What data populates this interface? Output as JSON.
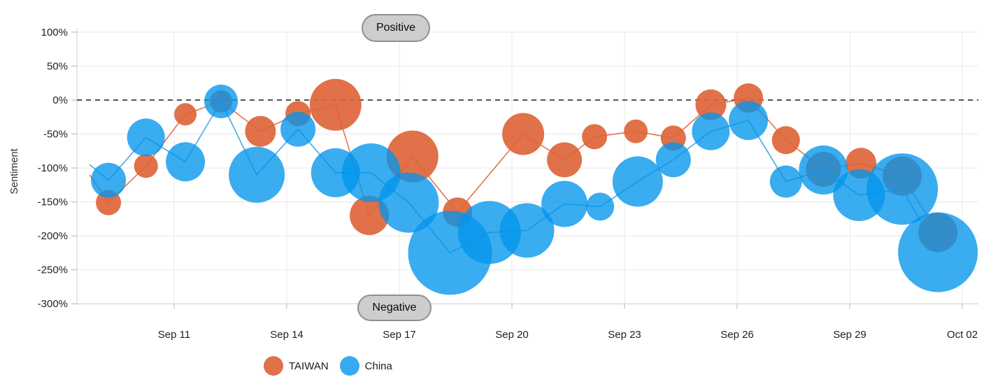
{
  "chart_data": {
    "type": "bubble",
    "title": "",
    "ylabel": "Sentiment",
    "ylim": [
      -300,
      100
    ],
    "grid": true,
    "zero_line": {
      "value": 0,
      "style": "dashed",
      "color": "#1a1a1a"
    },
    "annotations": {
      "top": "Positive",
      "bottom": "Negative"
    },
    "y_ticks": [
      {
        "label": "100%",
        "value": 100
      },
      {
        "label": "50%",
        "value": 50
      },
      {
        "label": "0%",
        "value": 0
      },
      {
        "label": "-50%",
        "value": -50
      },
      {
        "label": "-100%",
        "value": -100
      },
      {
        "label": "-150%",
        "value": -150
      },
      {
        "label": "-200%",
        "value": -200
      },
      {
        "label": "-250%",
        "value": -250
      },
      {
        "label": "-300%",
        "value": -300
      }
    ],
    "x_ticks": [
      {
        "label": "Sep 11",
        "day": 11
      },
      {
        "label": "Sep 14",
        "day": 14
      },
      {
        "label": "Sep 17",
        "day": 17
      },
      {
        "label": "Sep 20",
        "day": 20
      },
      {
        "label": "Sep 23",
        "day": 23
      },
      {
        "label": "Sep 26",
        "day": 26
      },
      {
        "label": "Sep 29",
        "day": 29
      },
      {
        "label": "Oct 02",
        "day": 32
      }
    ],
    "series": [
      {
        "name": "TAIWAN",
        "swatch_color": "#DF7049",
        "line_color": "#DF6E45",
        "bubble_fill": "rgba(221,101,58,0.92)",
        "points": [
          {
            "day": 8.75,
            "sentiment": -110,
            "r": 0
          },
          {
            "day": 9.25,
            "sentiment": -151,
            "r": 18
          },
          {
            "day": 10.25,
            "sentiment": -97,
            "r": 17
          },
          {
            "day": 11.3,
            "sentiment": -21,
            "r": 16
          },
          {
            "day": 12.25,
            "sentiment": -2,
            "r": 16
          },
          {
            "day": 13.3,
            "sentiment": -46,
            "r": 22
          },
          {
            "day": 14.3,
            "sentiment": -20,
            "r": 18
          },
          {
            "day": 15.3,
            "sentiment": -7,
            "r": 37
          },
          {
            "day": 16.2,
            "sentiment": -170,
            "r": 28
          },
          {
            "day": 17.35,
            "sentiment": -83,
            "r": 37
          },
          {
            "day": 18.55,
            "sentiment": -165,
            "r": 21
          },
          {
            "day": 20.3,
            "sentiment": -50,
            "r": 30
          },
          {
            "day": 21.4,
            "sentiment": -88,
            "r": 25
          },
          {
            "day": 22.2,
            "sentiment": -54,
            "r": 18
          },
          {
            "day": 23.3,
            "sentiment": -46,
            "r": 17
          },
          {
            "day": 24.3,
            "sentiment": -56,
            "r": 18
          },
          {
            "day": 25.3,
            "sentiment": -7,
            "r": 22
          },
          {
            "day": 26.3,
            "sentiment": 3,
            "r": 21
          },
          {
            "day": 27.3,
            "sentiment": -59,
            "r": 20
          },
          {
            "day": 28.3,
            "sentiment": -102,
            "r": 25
          },
          {
            "day": 29.3,
            "sentiment": -93,
            "r": 22
          },
          {
            "day": 30.4,
            "sentiment": -112,
            "r": 28
          },
          {
            "day": 31.35,
            "sentiment": -195,
            "r": 28
          }
        ]
      },
      {
        "name": "China",
        "swatch_color": "#38AAF0",
        "line_color": "#3BA3E8",
        "bubble_fill": "rgba(3,149,236,0.78)",
        "points": [
          {
            "day": 8.75,
            "sentiment": -95,
            "r": 0
          },
          {
            "day": 9.25,
            "sentiment": -118,
            "r": 25
          },
          {
            "day": 10.25,
            "sentiment": -55,
            "r": 27
          },
          {
            "day": 11.3,
            "sentiment": -91,
            "r": 28
          },
          {
            "day": 12.25,
            "sentiment": -2,
            "r": 24
          },
          {
            "day": 13.2,
            "sentiment": -110,
            "r": 40
          },
          {
            "day": 14.3,
            "sentiment": -43,
            "r": 25
          },
          {
            "day": 15.3,
            "sentiment": -107,
            "r": 35
          },
          {
            "day": 16.25,
            "sentiment": -107,
            "r": 42
          },
          {
            "day": 17.25,
            "sentiment": -151,
            "r": 43
          },
          {
            "day": 18.35,
            "sentiment": -225,
            "r": 60
          },
          {
            "day": 19.4,
            "sentiment": -195,
            "r": 45
          },
          {
            "day": 20.4,
            "sentiment": -192,
            "r": 39
          },
          {
            "day": 21.4,
            "sentiment": -153,
            "r": 33
          },
          {
            "day": 22.35,
            "sentiment": -157,
            "r": 20
          },
          {
            "day": 23.35,
            "sentiment": -120,
            "r": 36
          },
          {
            "day": 24.3,
            "sentiment": -88,
            "r": 25
          },
          {
            "day": 25.3,
            "sentiment": -46,
            "r": 27
          },
          {
            "day": 26.3,
            "sentiment": -30,
            "r": 28
          },
          {
            "day": 27.3,
            "sentiment": -120,
            "r": 23
          },
          {
            "day": 28.3,
            "sentiment": -103,
            "r": 35
          },
          {
            "day": 29.25,
            "sentiment": -140,
            "r": 37
          },
          {
            "day": 30.4,
            "sentiment": -131,
            "r": 51
          },
          {
            "day": 31.35,
            "sentiment": -224,
            "r": 57
          }
        ]
      }
    ]
  },
  "legend": {
    "items": [
      {
        "label": "TAIWAN",
        "color": "#DF7049"
      },
      {
        "label": "China",
        "color": "#38AAF0"
      }
    ]
  },
  "colors": {
    "grid": "#e8e8e8",
    "axis": "#cfcfcf",
    "tick": "#b0b0b0",
    "tick_text": "#1f1f1f",
    "pill_bg": "#cdcdcd",
    "pill_border": "#8f8f8f"
  }
}
